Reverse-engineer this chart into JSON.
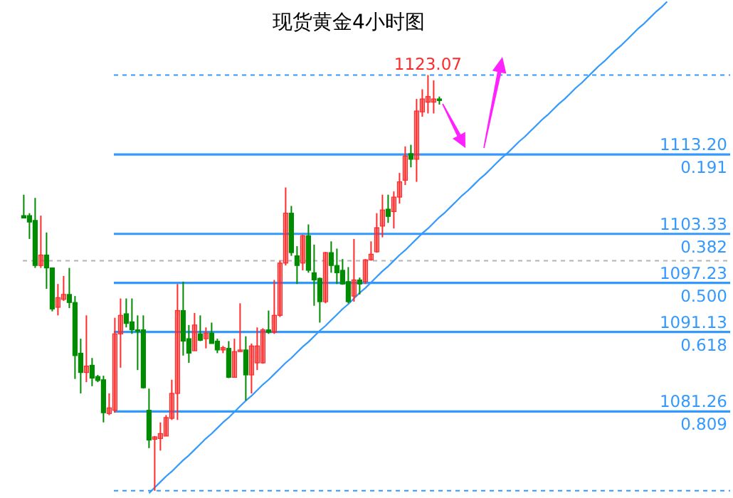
{
  "chart_data": {
    "type": "candlestick",
    "title": "现货黄金4小时图",
    "categories": [
      null,
      null,
      null,
      null,
      null,
      null,
      null,
      null,
      null,
      null,
      null,
      null,
      null,
      null,
      null,
      null,
      null,
      null,
      null,
      null,
      null,
      null,
      null,
      null,
      null,
      null,
      null,
      null,
      null,
      null,
      null,
      null,
      null,
      null,
      null,
      null,
      null,
      null,
      null,
      null,
      null,
      null,
      null,
      null,
      null,
      null,
      null,
      null,
      null,
      null,
      null,
      null,
      null,
      null,
      null,
      null,
      null,
      null,
      null,
      null,
      null,
      null,
      null,
      null,
      null,
      null,
      null,
      null,
      null,
      null,
      null,
      null,
      null,
      null,
      null,
      null,
      null,
      null,
      null,
      null,
      null,
      null,
      null,
      null,
      null,
      null,
      null,
      null,
      null,
      null,
      null,
      null,
      null,
      null,
      null,
      null,
      null,
      null,
      null,
      null,
      null,
      null,
      null,
      null,
      null,
      null,
      null,
      null,
      null,
      null,
      null,
      null,
      null,
      null
    ],
    "ohlc": [
      [
        1105.6,
        1108.2,
        1105.3,
        1105.3
      ],
      [
        1105.6,
        1105.9,
        1102.7,
        1104.8
      ],
      [
        1105.0,
        1107.8,
        1099.1,
        1099.4
      ],
      [
        1099.4,
        1105.6,
        1099.1,
        1100.7
      ],
      [
        1100.7,
        1103.5,
        1096.5,
        1099.1
      ],
      [
        1099.1,
        1099.1,
        1093.7,
        1094.0
      ],
      [
        1094.2,
        1097.1,
        1093.2,
        1095.4
      ],
      [
        1095.2,
        1098.1,
        1095.0,
        1095.8
      ],
      [
        1095.8,
        1099.1,
        1094.1,
        1094.8
      ],
      [
        1094.8,
        1095.6,
        1085.3,
        1088.2
      ],
      [
        1088.5,
        1090.3,
        1083.5,
        1086.1
      ],
      [
        1086.1,
        1093.2,
        1084.9,
        1086.9
      ],
      [
        1087.0,
        1087.9,
        1084.4,
        1085.4
      ],
      [
        1085.6,
        1085.8,
        1084.9,
        1085.1
      ],
      [
        1085.2,
        1085.7,
        1079.9,
        1081.1
      ],
      [
        1081.0,
        1083.5,
        1080.8,
        1081.7
      ],
      [
        1081.4,
        1092.9,
        1081.1,
        1090.9
      ],
      [
        1090.9,
        1095.3,
        1086.7,
        1093.2
      ],
      [
        1093.4,
        1095.3,
        1091.7,
        1092.2
      ],
      [
        1092.4,
        1095.3,
        1090.9,
        1091.4
      ],
      [
        1091.4,
        1093.2,
        1086.4,
        1091.2
      ],
      [
        1091.4,
        1093.2,
        1084.1,
        1084.2
      ],
      [
        1081.4,
        1084.1,
        1076.7,
        1077.7
      ],
      [
        1077.8,
        1078.2,
        1071.4,
        1078.1
      ],
      [
        1077.9,
        1079.9,
        1076.4,
        1078.5
      ],
      [
        1078.2,
        1080.8,
        1078.2,
        1080.5
      ],
      [
        1080.4,
        1085.2,
        1080.2,
        1083.5
      ],
      [
        1083.5,
        1097.1,
        1080.2,
        1093.8
      ],
      [
        1093.8,
        1097.4,
        1088.2,
        1090.0
      ],
      [
        1090.3,
        1092.0,
        1087.3,
        1088.5
      ],
      [
        1088.8,
        1093.5,
        1088.8,
        1092.0
      ],
      [
        1090.9,
        1093.2,
        1090.0,
        1090.1
      ],
      [
        1090.3,
        1091.7,
        1089.1,
        1091.0
      ],
      [
        1091.0,
        1092.3,
        1089.7,
        1089.7
      ],
      [
        1090.0,
        1090.3,
        1088.5,
        1088.9
      ],
      [
        1088.9,
        1089.4,
        1088.5,
        1089.2
      ],
      [
        1089.1,
        1090.0,
        1085.4,
        1085.5
      ],
      [
        1085.5,
        1090.3,
        1085.5,
        1088.7
      ],
      [
        1088.7,
        1094.7,
        1088.7,
        1088.9
      ],
      [
        1088.9,
        1090.6,
        1082.6,
        1085.8
      ],
      [
        1085.8,
        1089.7,
        1083.5,
        1089.4
      ],
      [
        1087.3,
        1091.7,
        1086.4,
        1089.4
      ],
      [
        1087.3,
        1091.6,
        1087.2,
        1091.4
      ],
      [
        1091.4,
        1093.8,
        1090.9,
        1091.1
      ],
      [
        1091.1,
        1097.6,
        1090.9,
        1093.2
      ],
      [
        1093.2,
        1100.0,
        1093.0,
        1099.7
      ],
      [
        1099.7,
        1109.1,
        1099.4,
        1105.9
      ],
      [
        1105.9,
        1106.8,
        1100.6,
        1101.0
      ],
      [
        1100.6,
        1101.8,
        1097.1,
        1099.4
      ],
      [
        1099.7,
        1103.2,
        1098.8,
        1103.1
      ],
      [
        1103.1,
        1104.5,
        1098.5,
        1098.8
      ],
      [
        1098.5,
        1102.0,
        1094.4,
        1097.6
      ],
      [
        1097.8,
        1097.9,
        1092.3,
        1094.9
      ],
      [
        1094.9,
        1101.1,
        1094.7,
        1101.0
      ],
      [
        1101.0,
        1102.4,
        1098.5,
        1099.4
      ],
      [
        1099.4,
        1101.5,
        1097.1,
        1098.5
      ],
      [
        1098.8,
        1100.2,
        1097.0,
        1097.1
      ],
      [
        1097.4,
        1099.2,
        1094.7,
        1094.9
      ],
      [
        1095.6,
        1102.7,
        1094.9,
        1097.6
      ],
      [
        1097.6,
        1097.9,
        1095.8,
        1097.1
      ],
      [
        1097.4,
        1100.2,
        1097.1,
        1100.1
      ],
      [
        1100.1,
        1102.4,
        1100.0,
        1100.8
      ],
      [
        1101.1,
        1105.9,
        1101.0,
        1104.1
      ],
      [
        1104.3,
        1108.2,
        1102.9,
        1106.3
      ],
      [
        1106.4,
        1108.2,
        1104.7,
        1105.5
      ],
      [
        1106.1,
        1108.6,
        1104.0,
        1107.9
      ],
      [
        1107.9,
        1110.9,
        1107.1,
        1109.8
      ],
      [
        1110.0,
        1114.2,
        1109.4,
        1113.0
      ],
      [
        1113.3,
        1114.4,
        1111.6,
        1112.6
      ],
      [
        1112.6,
        1120.1,
        1109.8,
        1118.6
      ],
      [
        1118.5,
        1121.3,
        1117.9,
        1120.1
      ],
      [
        1119.7,
        1123.07,
        1118.3,
        1120.4
      ],
      [
        1119.7,
        1122.4,
        1118.3,
        1120.1
      ],
      [
        1120.1,
        1120.4,
        1119.4,
        1119.9
      ],
      null,
      null,
      null,
      null,
      null,
      null,
      null,
      null,
      null,
      null,
      null,
      null,
      null,
      null,
      null,
      null,
      null,
      null,
      null,
      null,
      null,
      null,
      null,
      null,
      null,
      null,
      null,
      null,
      null,
      null,
      null,
      null,
      null,
      null,
      null,
      null,
      null,
      null,
      null,
      null
    ],
    "colors": [
      "#008c00",
      "#008c00",
      "#008c00",
      "#ff2a2a",
      "#008c00",
      "#008c00",
      "#ff2a2a",
      "#ff2a2a",
      "#008c00",
      "#008c00",
      "#008c00",
      "#ff2a2a",
      "#008c00",
      "#008c00",
      "#008c00",
      "#ff2a2a",
      "#ff2a2a",
      "#ff2a2a",
      "#008c00",
      "#008c00",
      "#008c00",
      "#008c00",
      "#008c00",
      "#ff2a2a",
      "#ff2a2a",
      "#ff2a2a",
      "#ff2a2a",
      "#ff2a2a",
      "#008c00",
      "#008c00",
      "#ff2a2a",
      "#008c00",
      "#ff2a2a",
      "#008c00",
      "#008c00",
      "#ff2a2a",
      "#008c00",
      "#ff2a2a",
      "#ff2a2a",
      "#008c00",
      "#ff2a2a",
      "#ff2a2a",
      "#ff2a2a",
      "#008c00",
      "#ff2a2a",
      "#ff2a2a",
      "#ff2a2a",
      "#008c00",
      "#008c00",
      "#ff2a2a",
      "#008c00",
      "#008c00",
      "#008c00",
      "#ff2a2a",
      "#008c00",
      "#008c00",
      "#008c00",
      "#008c00",
      "#ff2a2a",
      "#008c00",
      "#ff2a2a",
      "#ff2a2a",
      "#ff2a2a",
      "#ff2a2a",
      "#008c00",
      "#ff2a2a",
      "#ff2a2a",
      "#ff2a2a",
      "#008c00",
      "#ff2a2a",
      "#ff2a2a",
      "#ff2a2a",
      "#ff2a2a",
      "#008c00",
      null,
      null,
      null,
      null,
      null,
      null,
      null,
      null,
      null,
      null,
      null,
      null,
      null,
      null,
      null,
      null,
      null,
      null,
      null,
      null,
      null,
      null,
      null,
      null,
      null,
      null,
      null,
      null,
      null,
      null,
      null,
      null,
      null,
      null,
      null,
      null,
      null,
      null,
      null,
      null
    ],
    "series": [
      {
        "type": "line",
        "color": "#3399ff",
        "values": [
          null,
          null,
          null,
          null,
          null,
          null,
          null,
          null,
          null,
          null,
          null,
          null,
          null,
          null,
          null,
          null,
          null,
          null,
          null,
          null,
          null,
          null,
          1071.1,
          1071.8,
          1072.5,
          1073.2,
          1073.8,
          1074.5,
          1075.2,
          1075.8,
          1076.5,
          1077.2,
          1077.9,
          1078.5,
          1079.2,
          1079.9,
          1080.5,
          1081.2,
          1081.9,
          1082.6,
          1083.2,
          1083.9,
          1084.6,
          1085.2,
          1085.9,
          1086.6,
          1087.3,
          1087.9,
          1088.6,
          1089.3,
          1089.9,
          1090.6,
          1091.3,
          1091.9,
          1092.6,
          1093.3,
          1094.0,
          1094.6,
          1095.3,
          1096.0,
          1096.6,
          1097.3,
          1098.0,
          1098.7,
          1099.3,
          1100.0,
          1100.7,
          1101.3,
          1102.0,
          1102.7,
          1103.4,
          1104.0,
          1104.7,
          1105.4,
          1106.0,
          1106.7,
          1107.4,
          1108.1,
          1108.7,
          1109.4,
          1110.1,
          1110.7,
          1111.4,
          1112.1,
          1112.8,
          1113.4,
          1114.1,
          1114.8,
          1115.4,
          1116.1,
          1116.8,
          1117.5,
          1118.1,
          1118.8,
          1119.5,
          1120.1,
          1120.8,
          1121.5,
          1122.1,
          1122.8,
          1123.5,
          1124.2,
          1124.8,
          1125.5,
          1126.2,
          1126.8,
          1127.5,
          1128.2,
          1128.9,
          1129.5,
          1130.2,
          1130.9,
          1131.5,
          1132.2
        ]
      }
    ],
    "ylim": [
      1070.5,
      1132.4
    ],
    "ref_lines": [
      {
        "axis": "y",
        "value": 1123.07,
        "color": "#3399ff",
        "line_style": "dashed"
      },
      {
        "axis": "y",
        "value": 1113.2,
        "label": "1113.20",
        "color": "#3399ff"
      },
      {
        "axis": "y",
        "value": 1103.33,
        "label": "1103.33",
        "color": "#3399ff"
      },
      {
        "axis": "y",
        "value": 1100.0,
        "color": "#b4b4b4",
        "line_style": "dashed"
      },
      {
        "axis": "y",
        "value": 1097.23,
        "label": "1097.23",
        "color": "#3399ff"
      },
      {
        "axis": "y",
        "value": 1091.13,
        "label": "1091.13",
        "color": "#3399ff"
      },
      {
        "axis": "y",
        "value": 1081.26,
        "label": "1081.26",
        "color": "#3399ff"
      },
      {
        "axis": "y",
        "value": 1071.4,
        "color": "#3399ff",
        "line_style": "dashed"
      }
    ],
    "annotations": [
      {
        "text": "1123.07",
        "y": 1123.07
      },
      {
        "text": "0.191",
        "y": 1113.2
      },
      {
        "text": "0.382",
        "y": 1103.33
      },
      {
        "text": "0.500",
        "y": 1097.23
      },
      {
        "text": "0.618",
        "y": 1091.13
      },
      {
        "text": "0.809",
        "y": 1081.26
      }
    ]
  }
}
